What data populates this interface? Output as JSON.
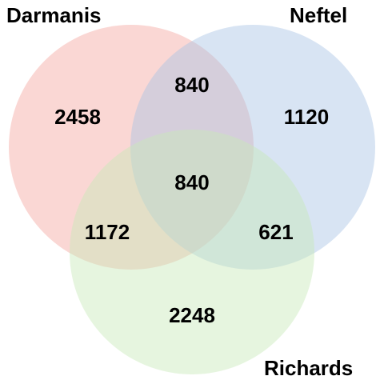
{
  "sets": [
    {
      "id": "darmanis",
      "label": "Darmanis",
      "color": "#f4a6a0"
    },
    {
      "id": "neftel",
      "label": "Neftel",
      "color": "#a9c4e4"
    },
    {
      "id": "richards",
      "label": "Richards",
      "color": "#c8e8b8"
    }
  ],
  "regions": {
    "darmanis_only": "2458",
    "neftel_only": "1120",
    "richards_only": "2248",
    "darmanis_neftel": "840",
    "darmanis_richards": "1172",
    "neftel_richards": "621",
    "all_three": "840"
  }
}
